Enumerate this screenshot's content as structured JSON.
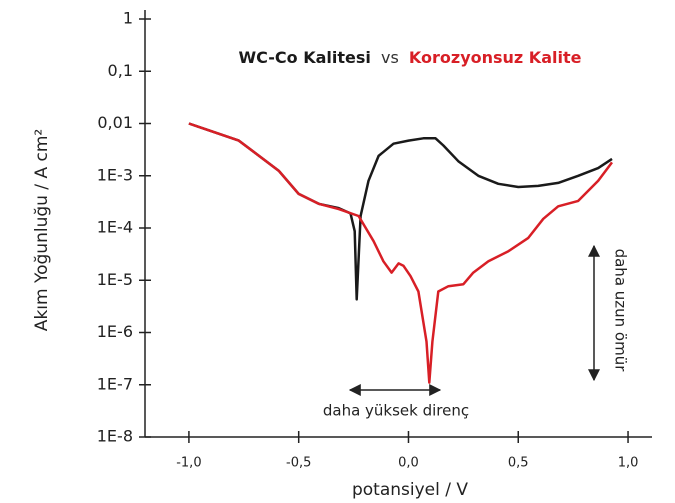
{
  "chart_data": {
    "type": "line",
    "title_parts": [
      "WC-Co Kalitesi",
      "vs",
      "Korozyonsuz Kalite"
    ],
    "title_colors": [
      "#1a1a1a",
      "#333333",
      "#d81f26"
    ],
    "x_label": "potansiyel / V",
    "y_label": "Akım Yoğunluğu / A cm²",
    "annotations": [
      "daha yüksek direnç",
      "daha uzun ömür"
    ],
    "log_y": true,
    "xlim": [
      -1.2,
      1.1
    ],
    "ylim": [
      1e-08,
      1
    ],
    "xticks": [
      {
        "value": -1.0,
        "label": "-1,0"
      },
      {
        "value": -0.5,
        "label": "-0,5"
      },
      {
        "value": 0.0,
        "label": "0,0"
      },
      {
        "value": 0.5,
        "label": "0,5"
      },
      {
        "value": 1.0,
        "label": "1,0"
      }
    ],
    "yticks": [
      {
        "value": 1e-08,
        "label": "1E-8"
      },
      {
        "value": 1e-07,
        "label": "1E-7"
      },
      {
        "value": 1e-06,
        "label": "1E-6"
      },
      {
        "value": 1e-05,
        "label": "1E-5"
      },
      {
        "value": 0.0001,
        "label": "1E-4"
      },
      {
        "value": 0.001,
        "label": "1E-3"
      },
      {
        "value": 0.01,
        "label": "0,01"
      },
      {
        "value": 0.1,
        "label": "0,1"
      },
      1
    ],
    "series": [
      {
        "name": "WC-Co Kalitesi",
        "color": "#1a1a1a",
        "x": [
          -1.0,
          -0.773,
          -0.591,
          -0.5,
          -0.409,
          -0.318,
          -0.264,
          -0.245,
          -0.236,
          -0.218,
          -0.182,
          -0.136,
          -0.068,
          0.0,
          0.068,
          0.123,
          0.159,
          0.227,
          0.318,
          0.409,
          0.5,
          0.591,
          0.682,
          0.773,
          0.864,
          0.927
        ],
        "values": [
          0.01,
          0.0047,
          0.00125,
          0.00045,
          0.00029,
          0.00024,
          0.00019,
          8.7e-05,
          4.3e-06,
          0.00017,
          0.0008,
          0.0024,
          0.0041,
          0.0047,
          0.0052,
          0.0052,
          0.0038,
          0.0019,
          0.001,
          0.0007,
          0.00061,
          0.00064,
          0.00073,
          0.001,
          0.0014,
          0.0021
        ]
      },
      {
        "name": "Korozyonsuz Kalite",
        "color": "#d81f26",
        "x": [
          -1.0,
          -0.773,
          -0.591,
          -0.5,
          -0.409,
          -0.318,
          -0.227,
          -0.159,
          -0.114,
          -0.077,
          -0.045,
          -0.023,
          0.009,
          0.045,
          0.082,
          0.095,
          0.109,
          0.136,
          0.182,
          0.25,
          0.295,
          0.364,
          0.455,
          0.545,
          0.614,
          0.682,
          0.773,
          0.864,
          0.927
        ],
        "values": [
          0.01,
          0.0047,
          0.00125,
          0.00045,
          0.00029,
          0.00023,
          0.00017,
          5.6e-05,
          2.3e-05,
          1.4e-05,
          2.1e-05,
          1.9e-05,
          1.2e-05,
          6.1e-06,
          6.7e-07,
          1.1e-07,
          6.7e-07,
          6.1e-06,
          7.7e-06,
          8.4e-06,
          1.4e-05,
          2.3e-05,
          3.6e-05,
          6.4e-05,
          0.00015,
          0.00026,
          0.00033,
          0.0008,
          0.0018
        ]
      }
    ]
  }
}
